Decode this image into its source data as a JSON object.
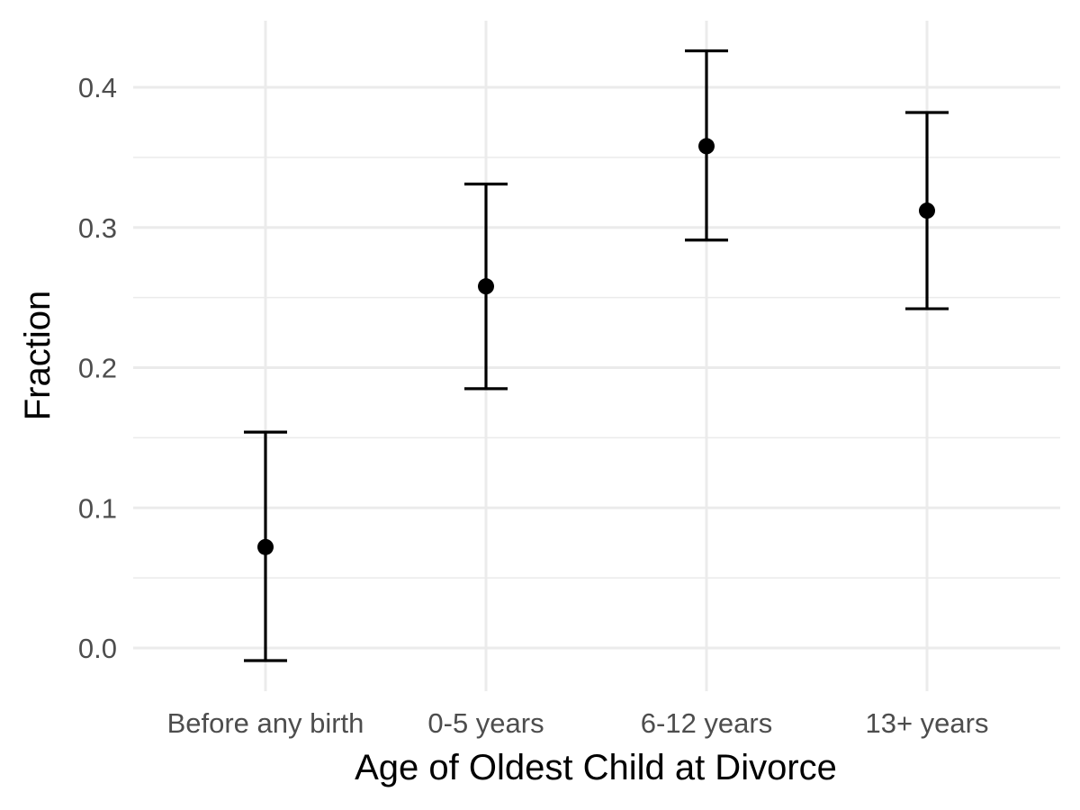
{
  "chart_data": {
    "type": "scatter",
    "title": "",
    "xlabel": "Age of Oldest Child at Divorce",
    "ylabel": "Fraction",
    "categories": [
      "Before any birth",
      "0-5 years",
      "6-12 years",
      "13+ years"
    ],
    "series": [
      {
        "values": [
          0.072,
          0.258,
          0.358,
          0.312
        ],
        "lower": [
          -0.009,
          0.185,
          0.291,
          0.242
        ],
        "upper": [
          0.154,
          0.331,
          0.426,
          0.382
        ]
      }
    ],
    "yticks": [
      0.0,
      0.1,
      0.2,
      0.3,
      0.4
    ],
    "ytick_labels": [
      "0.0",
      "0.1",
      "0.2",
      "0.3",
      "0.4"
    ],
    "ylim": [
      -0.03,
      0.445
    ],
    "grid": true,
    "colors": {
      "point": "#000000",
      "errorbar": "#000000",
      "grid": "#ebebeb",
      "tick_text": "#4d4d4d"
    }
  }
}
